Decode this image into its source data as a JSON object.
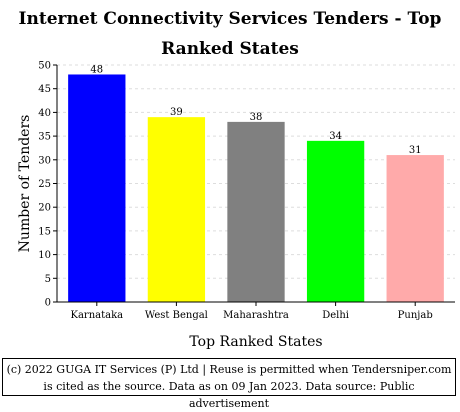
{
  "chart_data": {
    "type": "bar",
    "title": "Internet Connectivity Services Tenders - Top Ranked States",
    "xlabel": "Top Ranked States",
    "ylabel": "Number of Tenders",
    "categories": [
      "Karnataka",
      "West Bengal",
      "Maharashtra",
      "Delhi",
      "Punjab"
    ],
    "values": [
      48,
      39,
      38,
      34,
      31
    ],
    "colors": [
      "#0000ff",
      "#ffff00",
      "#808080",
      "#00ff00",
      "#ffaaaa"
    ],
    "ylim": [
      0,
      50
    ],
    "yticks": [
      0,
      5,
      10,
      15,
      20,
      25,
      30,
      35,
      40,
      45,
      50
    ],
    "grid": true
  },
  "footer": {
    "text": "(c) 2022 GUGA IT Services (P) Ltd | Reuse is permitted when Tendersniper.com is cited as the source. Data as on 09 Jan 2023. Data source: Public advertisement"
  }
}
